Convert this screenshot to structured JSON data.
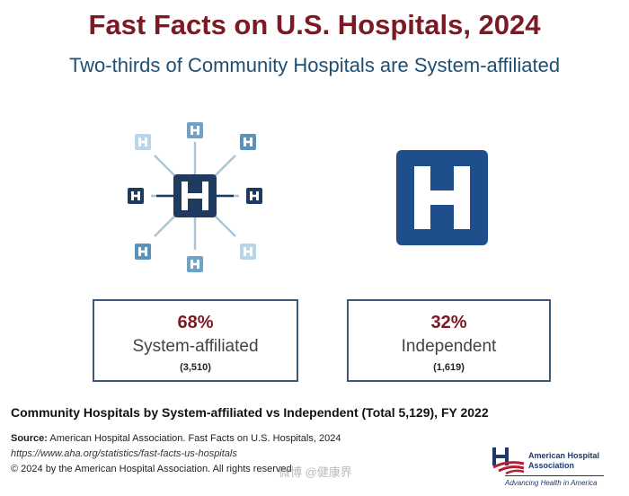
{
  "header": {
    "title": "Fast Facts on U.S. Hospitals, 2024",
    "subtitle": "Two-thirds of Community Hospitals are System-affiliated"
  },
  "stats": {
    "system": {
      "percent": "68%",
      "label": "System-affiliated",
      "count": "(3,510)"
    },
    "independent": {
      "percent": "32%",
      "label": "Independent",
      "count": "(1,619)"
    }
  },
  "caption": "Community Hospitals by System-affiliated vs Independent (Total 5,129), FY 2022",
  "footer": {
    "source_label": "Source:",
    "source_text": "American Hospital Association.  Fast Facts on U.S. Hospitals, 2024",
    "url": "https://www.aha.org/statistics/fast-facts-us-hospitals",
    "copyright": "© 2024 by the American Hospital Association. All rights reserved"
  },
  "logo": {
    "name_line1": "American Hospital",
    "name_line2": "Association",
    "tagline": "Advancing Health in America"
  },
  "watermark": "微博 @健康界",
  "colors": {
    "title": "#7b1a24",
    "subtitle": "#1f4e73",
    "hospital_blue": "#1f4e8c",
    "satellite_dark": "#1e3a5f",
    "satellite_light": "#9cc4dd"
  },
  "icons": {
    "system_icon": "hospital-network-icon",
    "independent_icon": "hospital-h-icon"
  }
}
